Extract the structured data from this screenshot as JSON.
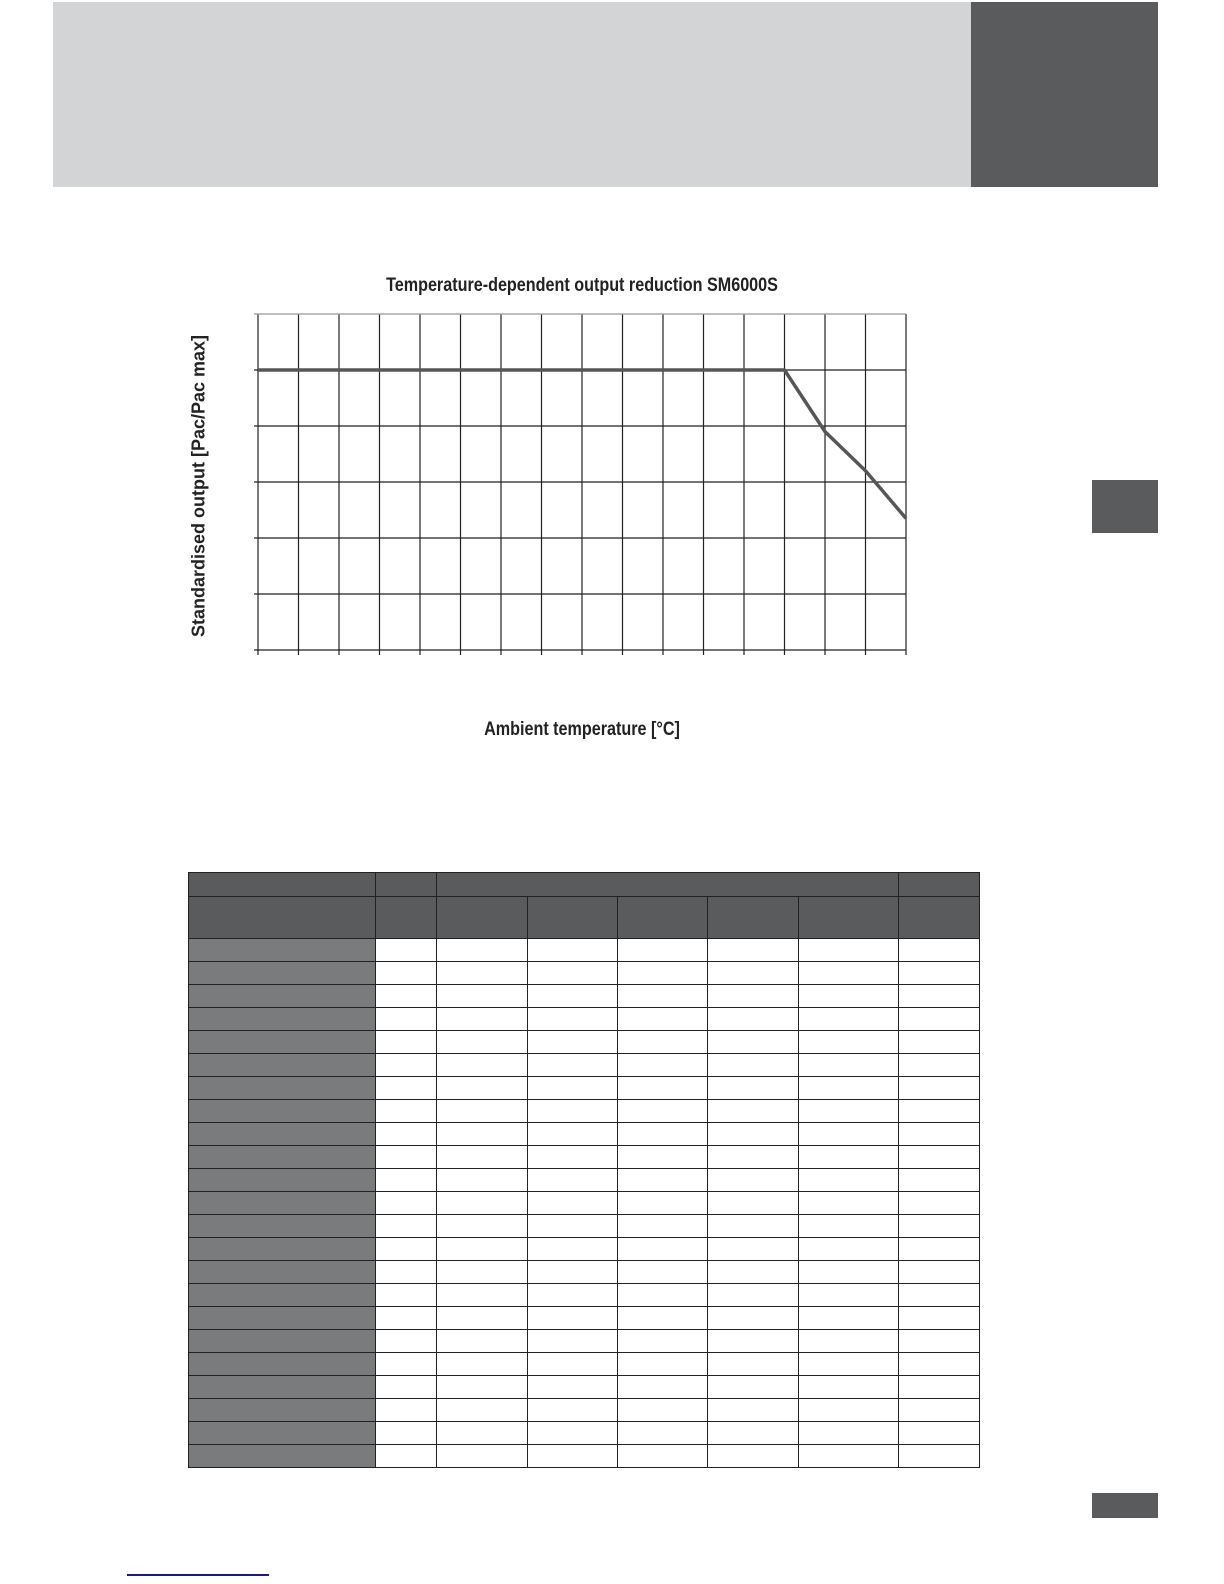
{
  "chart_data": {
    "type": "line",
    "title": "Temperature-dependent output reduction SM6000S",
    "xlabel": "Ambient temperature [°C]",
    "ylabel": "Standardised output  [Pac/Pac max]",
    "grid": true,
    "x_divisions": 16,
    "y_divisions": 6,
    "xlim": [
      0,
      16
    ],
    "ylim": [
      0,
      6
    ],
    "series": [
      {
        "x": [
          0,
          13,
          14,
          15,
          16
        ],
        "y": [
          5,
          5,
          3.9,
          3.2,
          2.35
        ]
      }
    ],
    "line_color": "#555658"
  },
  "colors": {
    "banner": "#d3d4d6",
    "dark": "#5a5b5d",
    "row_header": "#7a7b7d",
    "footer_line": "#1a1a8c"
  },
  "table": {
    "body_rows": 23,
    "columns": 8
  }
}
